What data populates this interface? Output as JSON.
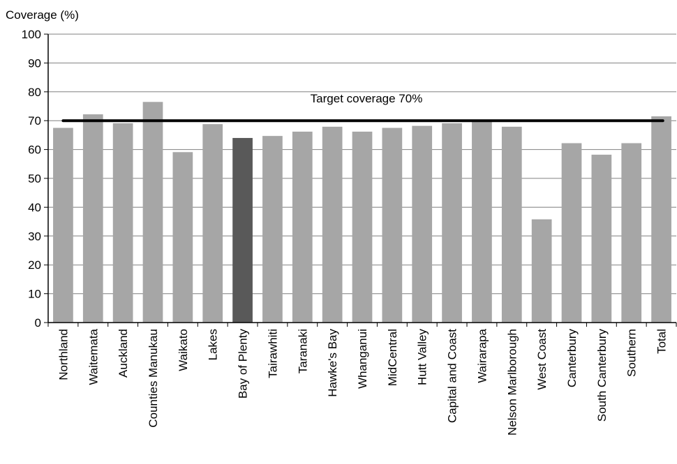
{
  "chart_data": {
    "type": "bar",
    "title": "",
    "ylabel": "Coverage  (%)",
    "xlabel": "",
    "ylim": [
      0,
      100
    ],
    "yticks": [
      0,
      10,
      20,
      30,
      40,
      50,
      60,
      70,
      80,
      90,
      100
    ],
    "grid": true,
    "categories": [
      "Northland",
      "Waitemata",
      "Auckland",
      "Counties Manukau",
      "Waikato",
      "Lakes",
      "Bay of Plenty",
      "Tairawhiti",
      "Taranaki",
      "Hawke's Bay",
      "Whanganui",
      "MidCentral",
      "Hutt Valley",
      "Capital and Coast",
      "Wairarapa",
      "Nelson Marlborough",
      "West Coast",
      "Canterbury",
      "South Canterbury",
      "Southern",
      "Total"
    ],
    "values": [
      67.5,
      72.2,
      69.1,
      76.5,
      59.1,
      68.8,
      64.0,
      64.7,
      66.2,
      67.9,
      66.2,
      67.5,
      68.2,
      69.1,
      70.0,
      67.9,
      35.8,
      62.2,
      58.2,
      62.2,
      71.5
    ],
    "highlight_category": "Bay of Plenty",
    "colors": {
      "bar": "#a6a6a6",
      "highlight": "#595959",
      "target_line": "#000000",
      "grid": "#808080"
    },
    "target": {
      "value": 70,
      "label": "Target coverage 70%"
    }
  }
}
